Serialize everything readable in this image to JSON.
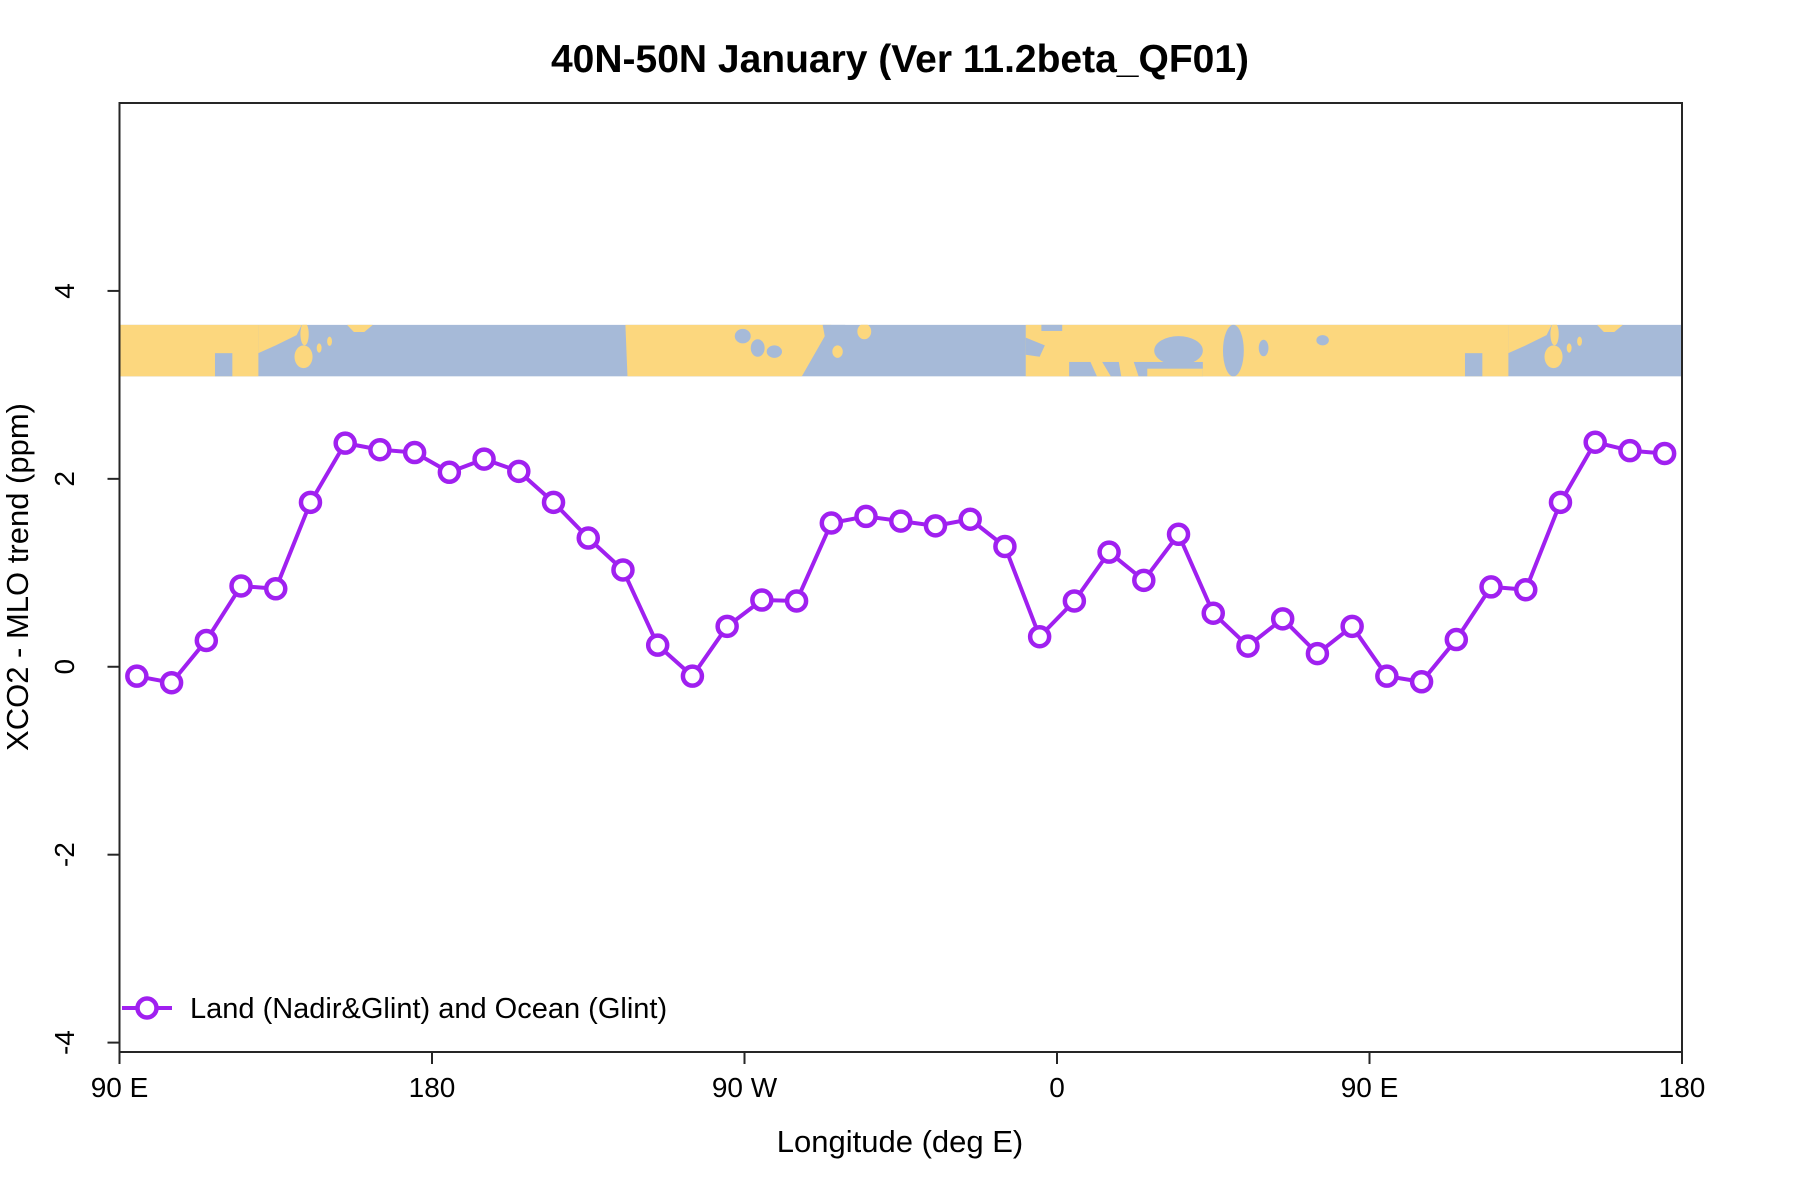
{
  "chart_data": {
    "type": "line",
    "title": "40N-50N January (Ver 11.2beta_QF01)",
    "xlabel": "Longitude (deg E)",
    "ylabel": "XCO2 - MLO trend (ppm)",
    "xlim": [
      90,
      540
    ],
    "ylim": [
      -4.1,
      6.0
    ],
    "grid": false,
    "x_ticks": [
      {
        "value": 90,
        "label": "90 E"
      },
      {
        "value": 180,
        "label": "180"
      },
      {
        "value": 270,
        "label": "90 W"
      },
      {
        "value": 360,
        "label": "0"
      },
      {
        "value": 450,
        "label": "90 E"
      },
      {
        "value": 540,
        "label": "180"
      }
    ],
    "y_ticks": [
      {
        "value": 4,
        "label": "4"
      },
      {
        "value": 2,
        "label": "2"
      },
      {
        "value": 0,
        "label": "0"
      },
      {
        "value": -2,
        "label": "-2"
      },
      {
        "value": -4,
        "label": "-4"
      }
    ],
    "series": [
      {
        "name": "Land (Nadir&Glint) and Ocean (Glint)",
        "color": "#A020F0",
        "marker": "open-circle",
        "x": [
          95,
          105,
          115,
          125,
          135,
          145,
          155,
          165,
          175,
          185,
          195,
          205,
          215,
          225,
          235,
          245,
          255,
          265,
          275,
          285,
          295,
          305,
          315,
          325,
          335,
          345,
          355,
          365,
          375,
          385,
          395,
          405,
          415,
          425,
          435,
          445,
          455,
          465,
          475,
          485,
          495,
          505,
          515,
          525,
          535
        ],
        "y": [
          -0.1,
          -0.17,
          0.28,
          0.86,
          0.83,
          1.75,
          2.38,
          2.31,
          2.28,
          2.07,
          2.21,
          2.08,
          1.75,
          1.37,
          1.03,
          0.23,
          -0.1,
          0.43,
          0.71,
          0.7,
          1.53,
          1.6,
          1.55,
          1.5,
          1.57,
          1.28,
          0.32,
          0.7,
          1.22,
          0.92,
          1.41,
          0.57,
          0.22,
          0.51,
          0.14,
          0.43,
          -0.1,
          -0.16,
          0.29,
          0.85,
          0.82,
          1.75,
          2.39,
          2.3,
          2.27
        ]
      }
    ],
    "legend": {
      "position": "bottom-left",
      "entries": [
        "Land (Nadir&Glint) and Ocean (Glint)"
      ]
    },
    "map_strip": {
      "description": "world coastline band 40N-50N drawn across plot from 90E wrapping to 180",
      "value_top": 3.64,
      "value_bottom": 3.09,
      "land_color": "#FCD77E",
      "ocean_color": "#A6BAD8"
    },
    "axis_color": "#262626",
    "background_color": "#ffffff"
  }
}
